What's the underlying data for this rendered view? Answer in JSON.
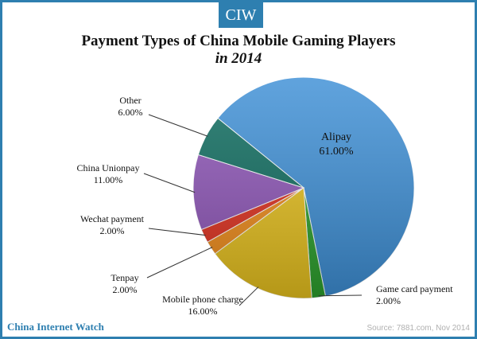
{
  "brand": {
    "logo_text": "CIW",
    "footer_name": "China Internet Watch"
  },
  "source": "Source: 7881.com, Nov 2014",
  "chart_data": {
    "type": "pie",
    "title": "Payment Types of China Mobile Gaming Players",
    "subtitle": "in 2014",
    "slices": [
      {
        "label": "Alipay",
        "value": 61.0,
        "value_label": "61.00%",
        "color": "#3d8fd6"
      },
      {
        "label": "Game card payment",
        "value": 2.0,
        "value_label": "2.00%",
        "color": "#2ca02c"
      },
      {
        "label": "Mobile phone charge",
        "value": 16.0,
        "value_label": "16.00%",
        "color": "#e8c21e"
      },
      {
        "label": "Tenpay",
        "value": 2.0,
        "value_label": "2.00%",
        "color": "#f08c1a"
      },
      {
        "label": "Wechat payment",
        "value": 2.0,
        "value_label": "2.00%",
        "color": "#e0301e"
      },
      {
        "label": "China Unionpay",
        "value": 11.0,
        "value_label": "11.00%",
        "color": "#8e55b8"
      },
      {
        "label": "Other",
        "value": 6.0,
        "value_label": "6.00%",
        "color": "#0c6b5e"
      }
    ]
  }
}
